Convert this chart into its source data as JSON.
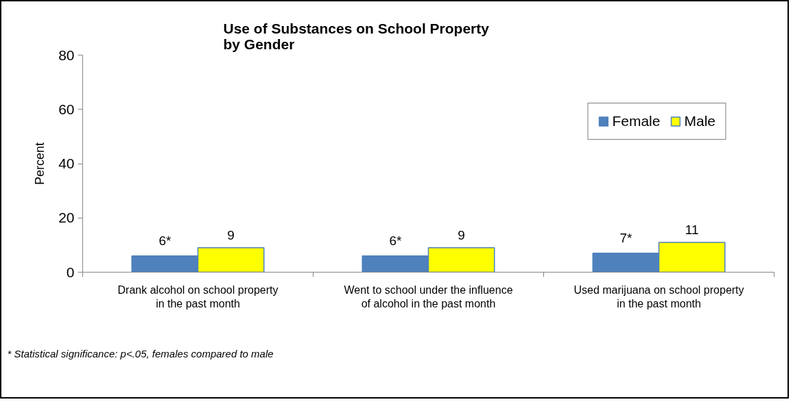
{
  "chart_data": {
    "type": "bar",
    "title": "Use of Substances on School Property\nby Gender",
    "ylabel": "Percent",
    "categories": [
      "Drank alcohol on school property\nin the past month",
      "Went to school under the influence\nof alcohol in the past month",
      "Used marijuana on school property\nin the past month"
    ],
    "series": [
      {
        "name": "Female",
        "color": "#4f81bd",
        "values": [
          6,
          6,
          7
        ],
        "value_labels": [
          "6*",
          "6*",
          "7*"
        ]
      },
      {
        "name": "Male",
        "color": "#ffff00",
        "values": [
          9,
          9,
          11
        ],
        "value_labels": [
          "9",
          "9",
          "11"
        ]
      }
    ],
    "ylim": [
      0,
      80
    ],
    "yticks": [
      0,
      20,
      40,
      60,
      80
    ],
    "grid": false,
    "legend": "top right",
    "annotations": [
      "* Statistical significance: p<.05, females compared to male"
    ]
  }
}
